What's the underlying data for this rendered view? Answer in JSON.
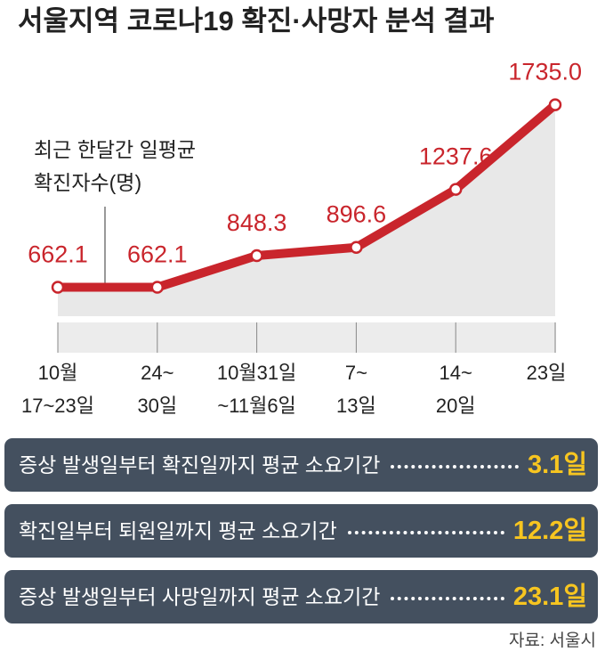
{
  "chart_data": {
    "type": "line",
    "title": "서울지역 코로나19 확진·사망자 분석 결과",
    "annotation": "최근 한달간 일평균\n확진자수(명)",
    "categories": [
      "10월\n17~23일",
      "24~\n30일",
      "10월31일\n~11월6일",
      "7~\n13일",
      "14~\n20일",
      "23일"
    ],
    "values": [
      662.1,
      662.1,
      848.3,
      896.6,
      1237.6,
      1735.0
    ],
    "value_labels": [
      "662.1",
      "662.1",
      "848.3",
      "896.6",
      "1237.6",
      "1735.0"
    ],
    "color": "#c9252c"
  },
  "summary": [
    {
      "label": "증상 발생일부터 확진일까지 평균 소요기간",
      "value": "3.1일"
    },
    {
      "label": "확진일부터 퇴원일까지 평균 소요기간",
      "value": "12.2일"
    },
    {
      "label": "증상 발생일부터 사망일까지 평균 소요기간",
      "value": "23.1일"
    }
  ],
  "source": "자료: 서울시"
}
